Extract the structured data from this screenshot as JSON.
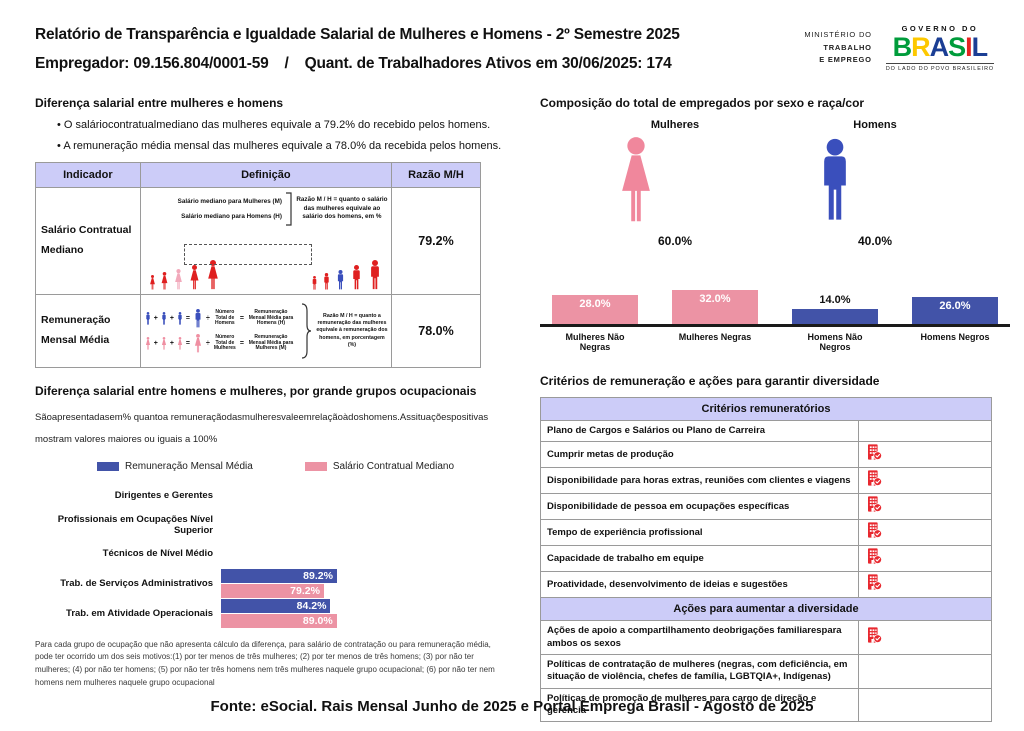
{
  "header": {
    "title": "Relatório de Transparência e Igualdade Salarial de Mulheres e Homens - 2º Semestre 2025",
    "employer": "Empregador: 09.156.804/0001-59",
    "separator": "/",
    "active_workers": "Quant. de Trabalhadores Ativos em 30/06/2025: 174",
    "logo": {
      "ministry_lines": [
        "MINISTÉRIO DO",
        "TRABALHO",
        "E EMPREGO"
      ],
      "governo": "GOVERNO DO",
      "brasil_letters": [
        "B",
        "R",
        "A",
        "S",
        "I",
        "L"
      ],
      "tagline": "DO LADO DO POVO BRASILEIRO"
    }
  },
  "left": {
    "pay_gap": {
      "title": "Diferença salarial entre mulheres e homens",
      "bullets": [
        "O saláriocontratualmediano das mulheres equivale a 79.2% do recebido pelos homens.",
        "A remuneração média mensal das mulheres equivale a 78.0% da recebida pelos homens."
      ],
      "table": {
        "headers": [
          "Indicador",
          "Definição",
          "Razão M/H"
        ],
        "rows": [
          {
            "indicator": "Salário Contratual Mediano",
            "ratio": "79.2%",
            "def_label_women": "Salário mediano para Mulheres (M)",
            "def_label_men": "Salário mediano para Homens (H)",
            "def_note": "Razão M / H = quanto o salário das mulheres equivale ao salário dos homens, em %"
          },
          {
            "indicator": "Remuneração Mensal Média",
            "ratio": "78.0%",
            "formula_men": {
              "divisor": "Número Total de Homens",
              "result": "Remuneração Mensal Média para Homens (H)"
            },
            "formula_women": {
              "divisor": "Número Total de Mulheres",
              "result": "Remuneração Mensal Média para Mulheres (M)"
            },
            "def_note": "Razão M / H = quanto a remuneração das mulheres equivale à remuneração dos homens, em porcentagem (%)"
          }
        ]
      }
    },
    "occupational": {
      "title": "Diferença salarial entre homens e mulheres, por grande grupos ocupacionais",
      "subtitle_lines": [
        "Sãoapresentadasem% quantoa remuneraçãodasmulheresvaleemrelaçãoàdoshomens.Assituaçõespositivas",
        "mostram valores maiores ou iguais a 100%"
      ],
      "footnote": "Para cada grupo de ocupação que não apresenta cálculo da diferença, para salário de contratação ou para remuneração média, pode ter ocorrido um dos seis motivos:(1) por ter menos de três mulheres; (2) por ter menos de três homens; (3) por não ter mulheres; (4) por não ter homens; (5) por não ter três homens nem três mulheres naquele grupo ocupacional; (6) por não ter nem homens nem mulheres naquele grupo ocupacional"
    }
  },
  "right": {
    "composition": {
      "title": "Composição do total de empregados por sexo e raça/cor",
      "women_label": "Mulheres",
      "women_value": "60.0%",
      "men_label": "Homens",
      "men_value": "40.0%"
    },
    "criteria": {
      "title": "Critérios de remuneração e ações para garantir diversidade",
      "groups": [
        {
          "header": "Critérios remuneratórios",
          "rows": [
            {
              "label": "Plano de Cargos e Salários ou Plano de Carreira",
              "checked": false
            },
            {
              "label": "Cumprir metas de produção",
              "checked": true
            },
            {
              "label": "Disponibilidade para horas extras, reuniões com clientes e viagens",
              "checked": true
            },
            {
              "label": "Disponibilidade de pessoa em ocupações específicas",
              "checked": true
            },
            {
              "label": "Tempo de experiência profissional",
              "checked": true
            },
            {
              "label": "Capacidade de trabalho em equipe",
              "checked": true
            },
            {
              "label": "Proatividade, desenvolvimento de ideias e sugestões",
              "checked": true
            }
          ]
        },
        {
          "header": "Ações para aumentar a diversidade",
          "rows": [
            {
              "label": "Ações de apoio a compartilhamento deobrigações familiarespara ambos os sexos",
              "checked": true
            },
            {
              "label": "Políticas de contratação de mulheres (negras, com deficiência, em situação de violência, chefes de família, LGBTQIA+, Indígenas)",
              "checked": false
            },
            {
              "label": "Políticas de promoção de mulheres para cargo de direção e gerência",
              "checked": false
            }
          ]
        }
      ]
    }
  },
  "footer": {
    "source": "Fonte: eSocial. Rais Mensal Junho de 2025 e Portal Emprega Brasil - Agosto de 2025"
  },
  "colors": {
    "blue_bar": "#4253a8",
    "pink_bar": "#ec93a4",
    "red_figure": "#df2020",
    "pink_figure": "#f2a9bb",
    "blue_figure": "#3a4fbc",
    "lavender_header": "#ccccf8",
    "icon_red": "#e8282f"
  },
  "chart_data": [
    {
      "type": "bar",
      "orientation": "horizontal",
      "title": "Diferença salarial entre homens e mulheres, por grande grupos ocupacionais",
      "categories": [
        "Dirigentes e Gerentes",
        "Profissionais em Ocupações Nível Superior",
        "Técnicos de Nível Médio",
        "Trab. de Serviços Administrativos",
        "Trab. em Atividade Operacionais"
      ],
      "series": [
        {
          "name": "Remuneração Mensal Média",
          "key": "remuneracao-mensal-media",
          "color": "#4253a8",
          "values": [
            null,
            null,
            null,
            89.2,
            84.2
          ]
        },
        {
          "name": "Salário Contratual Mediano",
          "key": "salario-contratual-mediano",
          "color": "#ec93a4",
          "values": [
            null,
            null,
            null,
            79.2,
            89.0
          ]
        }
      ],
      "unit": "%",
      "xlim": [
        0,
        100
      ]
    },
    {
      "type": "bar",
      "orientation": "vertical",
      "title": "Composição do total de empregados por sexo e raça/cor",
      "categories": [
        "Mulheres Não Negras",
        "Mulheres Negras",
        "Homens Não Negros",
        "Homens Negros"
      ],
      "values": [
        28.0,
        32.0,
        14.0,
        26.0
      ],
      "colors": [
        "#ec93a4",
        "#ec93a4",
        "#4253a8",
        "#4253a8"
      ],
      "unit": "%"
    },
    {
      "type": "pictogram",
      "title": "Composição por sexo",
      "categories": [
        "Mulheres",
        "Homens"
      ],
      "values": [
        60.0,
        40.0
      ],
      "unit": "%"
    }
  ]
}
